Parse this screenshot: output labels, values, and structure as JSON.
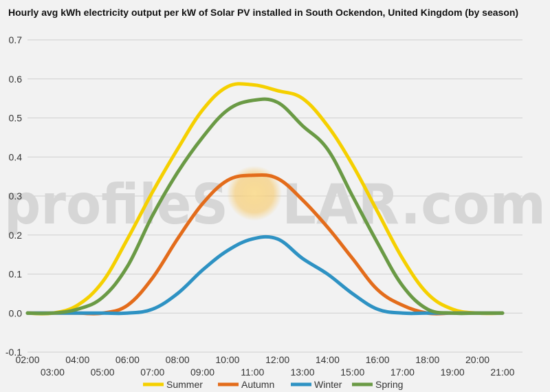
{
  "chart_data": {
    "type": "line",
    "title": "Hourly avg kWh electricity output per kW of Solar PV installed in South Ockendon, United Kingdom (by season)",
    "xlabel": "",
    "ylabel": "",
    "ylim": [
      -0.1,
      0.7
    ],
    "yticks": [
      "0.7",
      "0.6",
      "0.5",
      "0.4",
      "0.3",
      "0.2",
      "0.1",
      "0.0",
      "-0.1"
    ],
    "x": [
      2,
      3,
      4,
      5,
      6,
      7,
      8,
      9,
      10,
      11,
      12,
      13,
      14,
      15,
      16,
      17,
      18,
      19,
      20,
      21
    ],
    "xticks_top": [
      "02:00",
      "04:00",
      "06:00",
      "08:00",
      "10:00",
      "12:00",
      "14:00",
      "16:00",
      "18:00",
      "20:00"
    ],
    "xticks_bottom": [
      "03:00",
      "05:00",
      "07:00",
      "09:00",
      "11:00",
      "13:00",
      "15:00",
      "17:00",
      "19:00",
      "21:00"
    ],
    "grid": true,
    "legend_position": "bottom",
    "series": [
      {
        "name": "Summer",
        "color": "#f5d000",
        "values": [
          0,
          0,
          0.02,
          0.08,
          0.19,
          0.31,
          0.42,
          0.52,
          0.58,
          0.585,
          0.57,
          0.55,
          0.48,
          0.38,
          0.26,
          0.14,
          0.05,
          0.01,
          0,
          0
        ]
      },
      {
        "name": "Autumn",
        "color": "#e36c1b",
        "values": [
          0,
          0,
          0,
          0,
          0.02,
          0.09,
          0.19,
          0.28,
          0.34,
          0.353,
          0.345,
          0.29,
          0.22,
          0.14,
          0.06,
          0.02,
          0,
          0,
          0,
          0
        ]
      },
      {
        "name": "Winter",
        "color": "#2e92c3",
        "values": [
          0,
          0,
          0,
          0,
          0,
          0.01,
          0.05,
          0.11,
          0.16,
          0.19,
          0.19,
          0.14,
          0.1,
          0.05,
          0.01,
          0,
          0,
          0,
          0,
          0
        ]
      },
      {
        "name": "Spring",
        "color": "#6a9a45",
        "values": [
          0,
          0,
          0.01,
          0.04,
          0.12,
          0.25,
          0.36,
          0.45,
          0.52,
          0.545,
          0.54,
          0.48,
          0.42,
          0.3,
          0.18,
          0.07,
          0.01,
          0,
          0,
          0
        ]
      }
    ]
  },
  "watermark": {
    "left": "profileS",
    "right": "LAR.com",
    "sun_color": "#f7c45a"
  }
}
